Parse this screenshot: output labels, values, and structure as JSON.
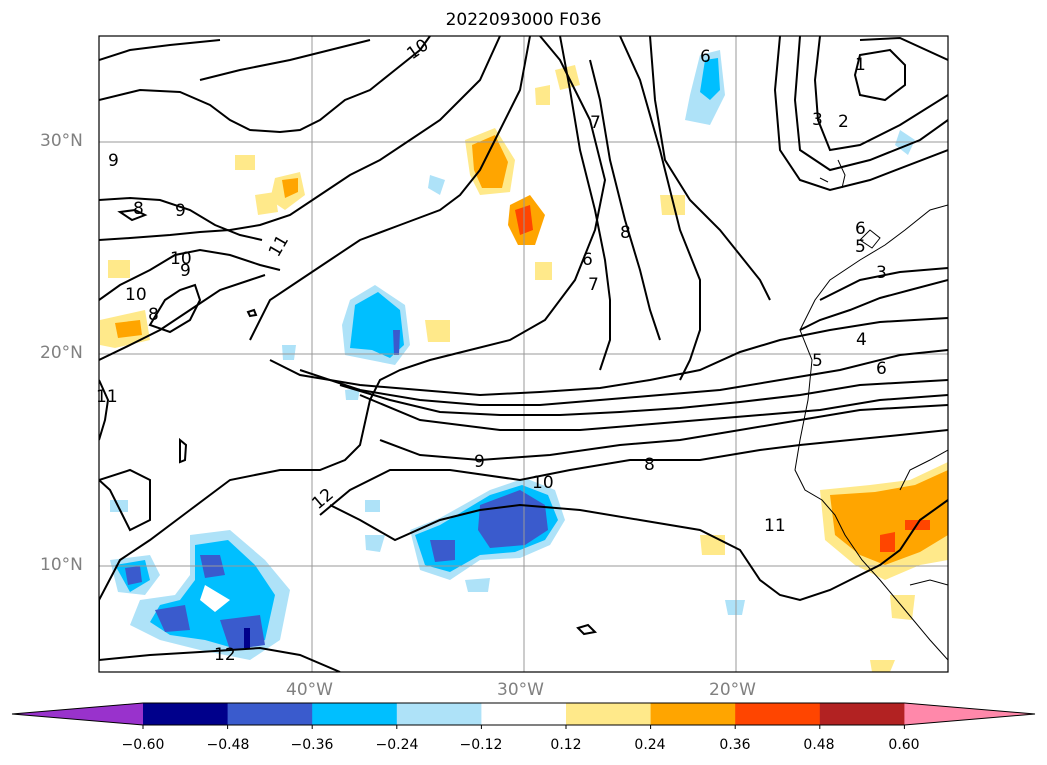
{
  "title": "2022093000 F036",
  "lat_labels": [
    "30°N",
    "20°N",
    "10°N"
  ],
  "lon_labels": [
    "40°W",
    "30°W",
    "20°W"
  ],
  "contour_labels": [
    "1",
    "2",
    "3",
    "4",
    "5",
    "6",
    "7",
    "8",
    "9",
    "10",
    "11",
    "12"
  ],
  "colorbar": {
    "ticks": [
      "−0.60",
      "−0.48",
      "−0.36",
      "−0.24",
      "−0.12",
      "0.12",
      "0.24",
      "0.36",
      "0.48",
      "0.60"
    ],
    "colors": [
      "#9932cc",
      "#00008b",
      "#3a5bcd",
      "#00bfff",
      "#aee2f8",
      "#ffffff",
      "#ffe98a",
      "#ffa500",
      "#ff4500",
      "#b22222",
      "#ff88aa"
    ]
  }
}
